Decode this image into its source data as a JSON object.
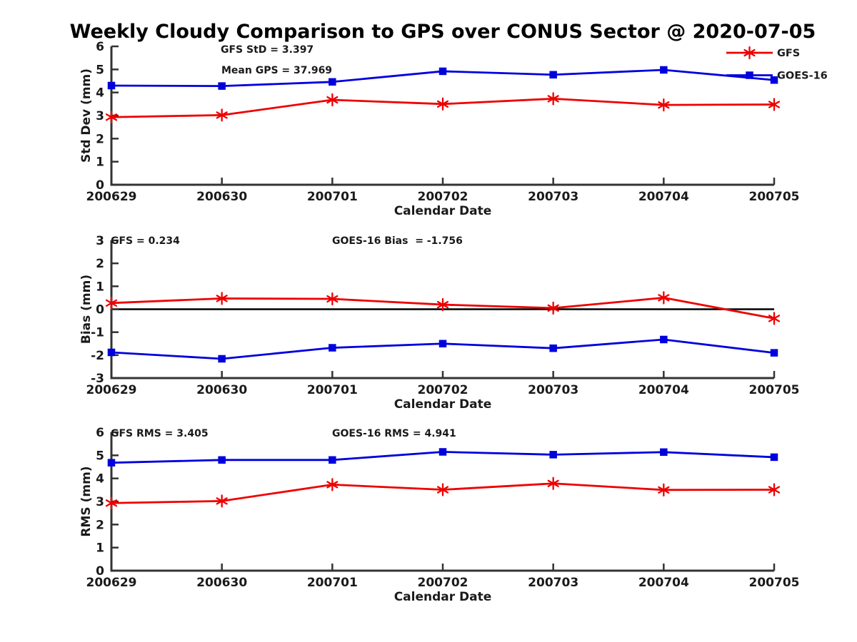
{
  "title": "Weekly Cloudy Comparison to GPS over CONUS Sector @ 2020-07-05",
  "colors": {
    "gfs": "#ee0000",
    "goes16": "#0000dd",
    "axis": "#333333",
    "text": "#1a1a1a",
    "zero_line": "#000000"
  },
  "chart_data": [
    {
      "type": "line",
      "title": "",
      "xlabel": "Calendar Date",
      "ylabel": "Std Dev (mm)",
      "ylim": [
        0,
        6
      ],
      "yticks": [
        0,
        1,
        2,
        3,
        4,
        5,
        6
      ],
      "grid": false,
      "legend_position": "top-right",
      "categories": [
        "200629",
        "200630",
        "200701",
        "200702",
        "200703",
        "200704",
        "200705"
      ],
      "series": [
        {
          "name": "GFS",
          "color": "#ee0000",
          "marker": "asterisk",
          "values": [
            2.93,
            3.02,
            3.68,
            3.5,
            3.73,
            3.46,
            3.48
          ]
        },
        {
          "name": "GOES-16",
          "color": "#0000dd",
          "marker": "square",
          "values": [
            4.3,
            4.28,
            4.46,
            4.92,
            4.77,
            4.98,
            4.54
          ]
        }
      ],
      "annotations": [
        {
          "text": "GFS StD = 3.397"
        },
        {
          "text": "Mean GPS = 37.969"
        }
      ]
    },
    {
      "type": "line",
      "title": "",
      "xlabel": "Calendar Date",
      "ylabel": "Bias (mm)",
      "ylim": [
        -3,
        3
      ],
      "yticks": [
        -3,
        -2,
        -1,
        0,
        1,
        2,
        3
      ],
      "grid": false,
      "zero_line": true,
      "categories": [
        "200629",
        "200630",
        "200701",
        "200702",
        "200703",
        "200704",
        "200705"
      ],
      "series": [
        {
          "name": "GFS",
          "color": "#ee0000",
          "marker": "asterisk",
          "values": [
            0.27,
            0.47,
            0.45,
            0.2,
            0.05,
            0.5,
            -0.4
          ]
        },
        {
          "name": "GOES-16",
          "color": "#0000dd",
          "marker": "square",
          "values": [
            -1.88,
            -2.16,
            -1.68,
            -1.5,
            -1.7,
            -1.32,
            -1.9
          ]
        }
      ],
      "annotations": [
        {
          "text": "GFS = 0.234"
        },
        {
          "text": "GOES-16 Bias  = -1.756"
        }
      ]
    },
    {
      "type": "line",
      "title": "",
      "xlabel": "Calendar Date",
      "ylabel": "RMS (mm)",
      "ylim": [
        0,
        6
      ],
      "yticks": [
        0,
        1,
        2,
        3,
        4,
        5,
        6
      ],
      "grid": false,
      "categories": [
        "200629",
        "200630",
        "200701",
        "200702",
        "200703",
        "200704",
        "200705"
      ],
      "series": [
        {
          "name": "GFS",
          "color": "#ee0000",
          "marker": "asterisk",
          "values": [
            2.93,
            3.02,
            3.73,
            3.51,
            3.78,
            3.5,
            3.51
          ]
        },
        {
          "name": "GOES-16",
          "color": "#0000dd",
          "marker": "square",
          "values": [
            4.68,
            4.8,
            4.8,
            5.15,
            5.03,
            5.14,
            4.92
          ]
        }
      ],
      "annotations": [
        {
          "text": "GFS RMS = 3.405"
        },
        {
          "text": "GOES-16 RMS = 4.941"
        }
      ]
    }
  ]
}
